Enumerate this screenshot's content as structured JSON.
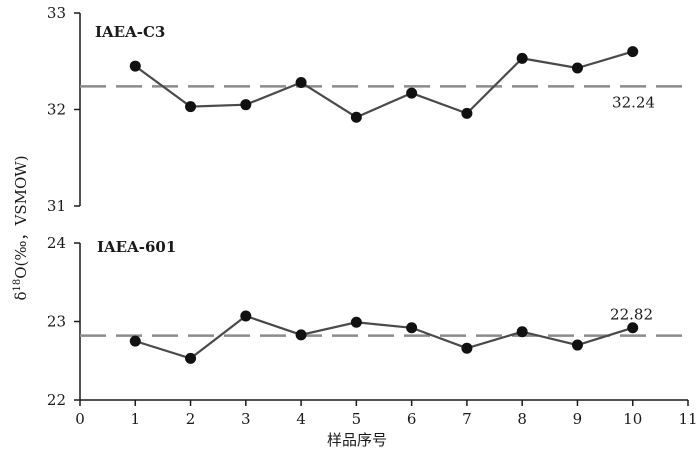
{
  "chart_data": {
    "type": "line",
    "x": [
      1,
      2,
      3,
      4,
      5,
      6,
      7,
      8,
      9,
      10
    ],
    "xlabel": "样品序号",
    "xlim": [
      0,
      11
    ],
    "xticks": [
      "0",
      "1",
      "2",
      "3",
      "4",
      "5",
      "6",
      "7",
      "8",
      "9",
      "10",
      "11"
    ],
    "ylabel": "δ18O(‰，VSMOW)",
    "ylabel_parts": {
      "delta": "δ",
      "sup": "18",
      "rest": "O(‰，VSMOW)"
    },
    "panels": [
      {
        "name": "IAEA-C3",
        "ylim": [
          31,
          33
        ],
        "yticks": [
          "31",
          "32",
          "33"
        ],
        "reference": {
          "value": 32.24,
          "label": "32.24"
        },
        "values": [
          32.45,
          32.03,
          32.05,
          32.28,
          31.92,
          32.17,
          31.96,
          32.53,
          32.43,
          32.6
        ]
      },
      {
        "name": "IAEA-601",
        "ylim": [
          22,
          24
        ],
        "yticks": [
          "22",
          "23",
          "24"
        ],
        "reference": {
          "value": 22.82,
          "label": "22.82"
        },
        "values": [
          22.75,
          22.53,
          23.07,
          22.83,
          22.99,
          22.92,
          22.66,
          22.87,
          22.7,
          22.92
        ]
      }
    ],
    "colors": {
      "line": "#4a4a4a",
      "marker": "#111111",
      "reference": "#8c8c8c",
      "axis": "#1a1a1a"
    }
  }
}
